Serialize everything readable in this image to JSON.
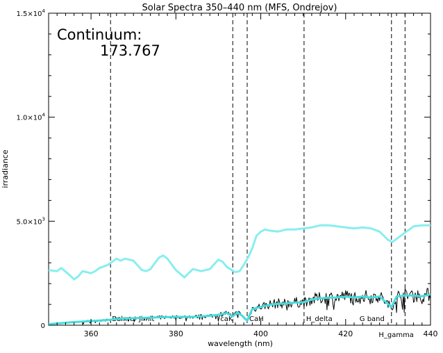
{
  "chart_data": {
    "type": "line",
    "title": "Solar Spectra 350–440 nm (MFS, Ondrejov)",
    "xlabel": "wavelength (nm)",
    "ylabel": "irradiance",
    "xlim": [
      350,
      440
    ],
    "ylim": [
      0,
      15000
    ],
    "x_ticks": [
      360,
      380,
      400,
      420,
      440
    ],
    "y_ticks": [
      {
        "value": 0,
        "mantissa": "0",
        "exponent": ""
      },
      {
        "value": 5000,
        "mantissa": "5.0×10",
        "exponent": "3"
      },
      {
        "value": 10000,
        "mantissa": "1.0×10",
        "exponent": "4"
      },
      {
        "value": 15000,
        "mantissa": "1.5×10",
        "exponent": "4"
      }
    ],
    "grid": false,
    "continuum_label": "Continuum:",
    "continuum_value": "173.767",
    "lines": [
      {
        "x": 364.6,
        "label": "Balmer Jimit"
      },
      {
        "x": 393.4,
        "label": "caK"
      },
      {
        "x": 396.8,
        "label": "CaH"
      },
      {
        "x": 410.2,
        "label": "H_delta"
      },
      {
        "x": 430.8,
        "label": "G band"
      },
      {
        "x": 434.0,
        "label": "H_gamma"
      }
    ],
    "series": [
      {
        "color": "#88eeee",
        "x": [
          350,
          352,
          353,
          355,
          356,
          357,
          358,
          360,
          361,
          362,
          364,
          366,
          367,
          368,
          370,
          372,
          373,
          374,
          376,
          377,
          378,
          380,
          382,
          383,
          384,
          386,
          388,
          390,
          391,
          392,
          394,
          395,
          396,
          397,
          398,
          399,
          400,
          401,
          402,
          404,
          406,
          408,
          410,
          412,
          414,
          416,
          418,
          420,
          422,
          424,
          426,
          428,
          430,
          431,
          432,
          434,
          436,
          438,
          440
        ],
        "y": [
          2650,
          2600,
          2750,
          2400,
          2200,
          2350,
          2600,
          2500,
          2600,
          2750,
          2900,
          3200,
          3100,
          3200,
          3100,
          2650,
          2600,
          2700,
          3250,
          3350,
          3200,
          2650,
          2300,
          2500,
          2700,
          2600,
          2700,
          3150,
          3050,
          2800,
          2550,
          2600,
          2900,
          3250,
          3700,
          4300,
          4500,
          4600,
          4550,
          4500,
          4600,
          4600,
          4650,
          4700,
          4800,
          4800,
          4750,
          4700,
          4650,
          4700,
          4650,
          4500,
          4100,
          4000,
          4150,
          4450,
          4750,
          4800,
          4800
        ]
      },
      {
        "color": "#000000",
        "noisy": true,
        "x": [
          350,
          353,
          356,
          360,
          364,
          366,
          368,
          372,
          376,
          380,
          384,
          388,
          390,
          392,
          393.4,
          394.5,
          395.5,
          396.8,
          398,
          400,
          402,
          404,
          406,
          408,
          410,
          412,
          414,
          416,
          418,
          420,
          422,
          424,
          426,
          428,
          430.8,
          432,
          434,
          436,
          438,
          440
        ],
        "y": [
          50,
          100,
          150,
          200,
          250,
          300,
          320,
          350,
          380,
          400,
          400,
          450,
          500,
          600,
          400,
          650,
          450,
          200,
          800,
          900,
          1000,
          1050,
          1050,
          1100,
          1100,
          1250,
          1300,
          1350,
          1350,
          1400,
          1350,
          1400,
          1350,
          1400,
          850,
          1400,
          1450,
          1450,
          1400,
          1500
        ]
      },
      {
        "color": "#44dddd",
        "x": [
          350,
          353,
          356,
          360,
          364,
          366,
          368,
          372,
          376,
          380,
          384,
          388,
          390,
          392,
          393.4,
          394.5,
          395.5,
          396.8,
          398,
          400,
          402,
          404,
          406,
          408,
          410,
          412,
          414,
          416,
          418,
          420,
          422,
          424,
          426,
          428,
          430.8,
          432,
          434,
          436,
          438,
          440
        ],
        "y": [
          50,
          100,
          150,
          200,
          250,
          300,
          320,
          350,
          380,
          400,
          400,
          450,
          500,
          580,
          420,
          620,
          470,
          220,
          780,
          880,
          980,
          1030,
          1040,
          1090,
          1100,
          1230,
          1290,
          1330,
          1330,
          1380,
          1330,
          1380,
          1330,
          1380,
          870,
          1380,
          1430,
          1430,
          1390,
          1480
        ]
      }
    ]
  }
}
